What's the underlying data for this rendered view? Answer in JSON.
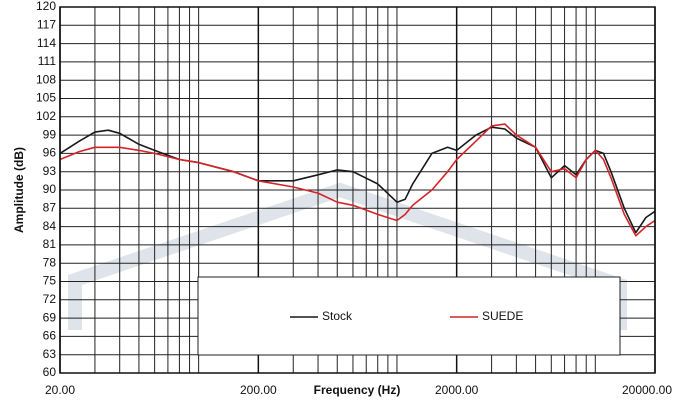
{
  "chart_data": {
    "type": "line",
    "xlabel": "Frequency (Hz)",
    "ylabel": "Amplitude (dB)",
    "xscale": "log",
    "x": [
      20,
      25,
      30,
      35,
      40,
      50,
      60,
      80,
      100,
      150,
      200,
      300,
      400,
      500,
      600,
      800,
      1000,
      1100,
      1200,
      1500,
      1800,
      2000,
      2500,
      3000,
      3500,
      4000,
      5000,
      6000,
      7000,
      8000,
      9000,
      10000,
      11000,
      12000,
      14000,
      16000,
      18000,
      20000
    ],
    "series": [
      {
        "name": "Stock",
        "color": "#1a1a1a",
        "values": [
          96,
          98,
          99.5,
          99.8,
          99.3,
          97.5,
          96.5,
          95,
          94.5,
          93,
          91.5,
          91.5,
          92.5,
          93.3,
          93,
          91,
          88,
          88.5,
          91,
          96,
          97,
          96.5,
          99,
          100.3,
          100,
          98.5,
          97,
          92,
          94,
          92.5,
          95,
          96.5,
          96,
          93,
          87,
          83,
          85.5,
          86.5
        ]
      },
      {
        "name": "SUEDE",
        "color": "#d6232a",
        "values": [
          95,
          96.3,
          97,
          97,
          97,
          96.5,
          96,
          95,
          94.5,
          93,
          91.5,
          90.5,
          89.5,
          88,
          87.5,
          86,
          85,
          86,
          87.5,
          90,
          93,
          95,
          98,
          100.5,
          100.8,
          99,
          97,
          93,
          93.5,
          92,
          95,
          96.5,
          95,
          92,
          86,
          82.5,
          84,
          85
        ]
      }
    ],
    "xlim": [
      20,
      20000
    ],
    "xticks": [
      {
        "value": 20,
        "label": "20.00"
      },
      {
        "value": 200,
        "label": "200.00"
      },
      {
        "value": 2000,
        "label": "2000.00"
      },
      {
        "value": 20000,
        "label": "20000.00"
      }
    ],
    "xminorticks": [
      30,
      40,
      50,
      60,
      70,
      80,
      90,
      100,
      300,
      400,
      500,
      600,
      700,
      800,
      900,
      1000,
      3000,
      4000,
      5000,
      6000,
      7000,
      8000,
      9000,
      10000
    ],
    "ylim": [
      60,
      120
    ],
    "yticks": [
      60,
      63,
      66,
      69,
      72,
      75,
      78,
      81,
      84,
      87,
      90,
      93,
      96,
      99,
      102,
      105,
      108,
      111,
      114,
      117,
      120
    ],
    "grid": true,
    "legend": "bottom"
  }
}
